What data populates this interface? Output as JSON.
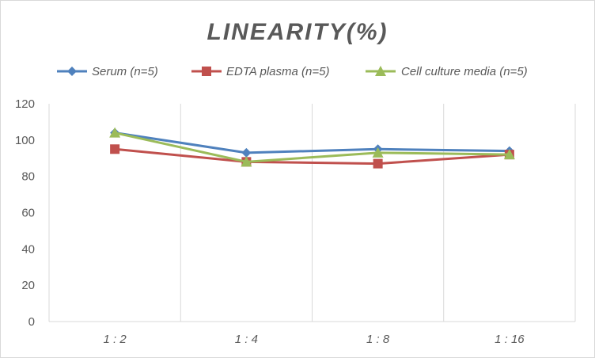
{
  "chart_data": {
    "type": "line",
    "title": "LINEARITY(%)",
    "categories": [
      "1:2",
      "1:4",
      "1:8",
      "1:16"
    ],
    "ylim": [
      0,
      120
    ],
    "yticks": [
      0,
      20,
      40,
      60,
      80,
      100,
      120
    ],
    "grid": "vertical",
    "legend_position": "top",
    "series": [
      {
        "name": "Serum (n=5)",
        "values": [
          104,
          93,
          95,
          94
        ],
        "color": "#4f81bd",
        "marker": "diamond"
      },
      {
        "name": "EDTA plasma (n=5)",
        "values": [
          95,
          88,
          87,
          92
        ],
        "color": "#c0504d",
        "marker": "square"
      },
      {
        "name": "Cell culture media (n=5)",
        "values": [
          104,
          88,
          93,
          92
        ],
        "color": "#9bbb59",
        "marker": "triangle"
      }
    ]
  }
}
